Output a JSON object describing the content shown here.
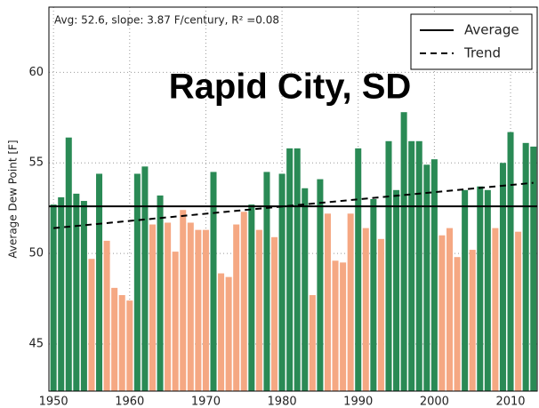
{
  "chart_data": {
    "type": "bar",
    "title": "Rapid City, SD",
    "annotation": "Avg: 52.6, slope: 3.87 F/century, R² =0.08",
    "y_label": "Average Dew Point [F]",
    "x": [
      1950,
      1951,
      1952,
      1953,
      1954,
      1955,
      1956,
      1957,
      1958,
      1959,
      1960,
      1961,
      1962,
      1963,
      1964,
      1965,
      1966,
      1967,
      1968,
      1969,
      1970,
      1971,
      1972,
      1973,
      1974,
      1975,
      1976,
      1977,
      1978,
      1979,
      1980,
      1981,
      1982,
      1983,
      1984,
      1985,
      1986,
      1987,
      1988,
      1989,
      1990,
      1991,
      1992,
      1993,
      1994,
      1995,
      1996,
      1997,
      1998,
      1999,
      2000,
      2001,
      2002,
      2003,
      2004,
      2005,
      2006,
      2007,
      2008,
      2009,
      2010,
      2011,
      2012,
      2013
    ],
    "values": [
      52.7,
      53.1,
      56.4,
      53.3,
      52.9,
      49.7,
      54.4,
      50.7,
      48.1,
      47.7,
      47.4,
      54.4,
      54.8,
      51.6,
      53.2,
      51.7,
      50.1,
      52.4,
      51.7,
      51.3,
      51.3,
      54.5,
      48.9,
      48.7,
      51.6,
      52.3,
      52.7,
      51.3,
      54.5,
      50.9,
      54.4,
      55.8,
      55.8,
      53.6,
      47.7,
      54.1,
      52.2,
      49.6,
      49.5,
      52.2,
      55.8,
      51.4,
      53.0,
      50.8,
      56.2,
      53.5,
      57.8,
      56.2,
      56.2,
      54.9,
      55.2,
      51.0,
      51.4,
      49.8,
      53.5,
      50.2,
      53.7,
      53.5,
      51.4,
      55.0,
      56.7,
      51.2,
      56.1,
      55.9
    ],
    "above_color": "#2a8a55",
    "below_color": "#f5a883",
    "average": {
      "name": "Average",
      "value": 52.6,
      "color": "#000000"
    },
    "trend": {
      "name": "Trend",
      "x": [
        1950,
        2013
      ],
      "values": [
        51.4,
        53.9
      ],
      "color": "#000000"
    },
    "xlim": [
      1949.4,
      2013.5
    ],
    "xticks": [
      1950,
      1960,
      1970,
      1980,
      1990,
      2000,
      2010
    ],
    "ylim": [
      42.4,
      63.6
    ],
    "yticks": [
      45,
      50,
      55,
      60
    ],
    "grid": true,
    "legend": "upper right"
  }
}
